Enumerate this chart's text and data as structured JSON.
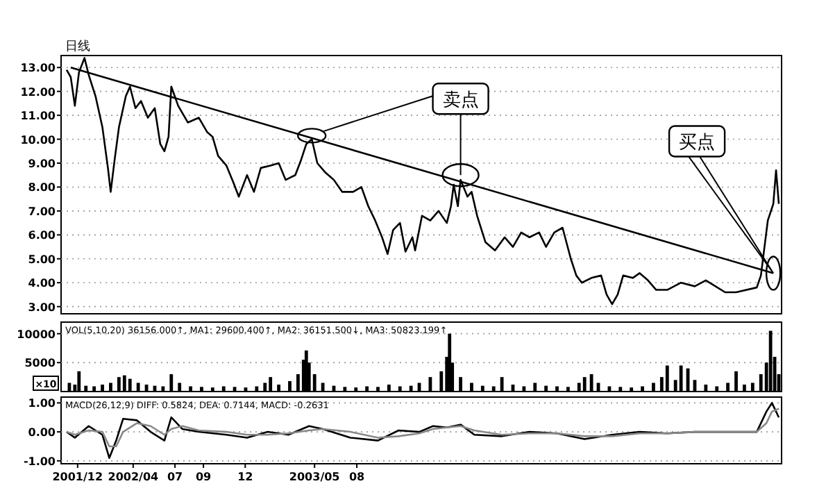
{
  "chart_data": [
    {
      "type": "line",
      "title": "日线",
      "xlim": [
        "2001-10-26",
        "2006-02-11"
      ],
      "ylim": [
        2.7,
        13.5
      ],
      "yticks": [
        {
          "value": 3,
          "label": "3.00"
        },
        {
          "value": 4,
          "label": "4.00"
        },
        {
          "value": 5,
          "label": "5.00"
        },
        {
          "value": 6,
          "label": "6.00"
        },
        {
          "value": 7,
          "label": "7.00"
        },
        {
          "value": 8,
          "label": "8.00"
        },
        {
          "value": 9,
          "label": "9.00"
        },
        {
          "value": 10,
          "label": "10.00"
        },
        {
          "value": 11,
          "label": "11.00"
        },
        {
          "value": 12,
          "label": "12.00"
        },
        {
          "value": 13,
          "label": "13.00"
        }
      ],
      "grid": "y",
      "tick_labels": "y",
      "series": [
        {
          "color": "#000000",
          "x": [
            "2001-11-07",
            "2001-11-16",
            "2001-11-25",
            "2001-12-04",
            "2001-12-16",
            "2001-12-25",
            "2002-01-09",
            "2002-01-24",
            "2002-02-05",
            "2002-02-11",
            "2002-02-20",
            "2002-03-01",
            "2002-03-16",
            "2002-03-25",
            "2002-04-06",
            "2002-04-18",
            "2002-05-03",
            "2002-05-18",
            "2002-05-30",
            "2002-06-08",
            "2002-06-17",
            "2002-06-23",
            "2002-07-08",
            "2002-07-29",
            "2002-08-22",
            "2002-09-09",
            "2002-09-21",
            "2002-10-03",
            "2002-10-21",
            "2002-11-05",
            "2002-11-17",
            "2002-12-05",
            "2002-12-20",
            "2003-01-04",
            "2003-01-25",
            "2003-02-12",
            "2003-02-27",
            "2003-03-20",
            "2003-04-01",
            "2003-04-13",
            "2003-04-25",
            "2003-05-07",
            "2003-05-25",
            "2003-06-12",
            "2003-06-30",
            "2003-07-24",
            "2003-08-11",
            "2003-08-26",
            "2003-09-10",
            "2003-09-25",
            "2003-10-07",
            "2003-10-19",
            "2003-11-03",
            "2003-11-15",
            "2003-11-30",
            "2003-12-06",
            "2003-12-21",
            "2004-01-08",
            "2004-01-26",
            "2004-02-13",
            "2004-02-22",
            "2004-02-28",
            "2004-03-08",
            "2004-03-14",
            "2004-03-29",
            "2004-04-07",
            "2004-04-19",
            "2004-05-07",
            "2004-05-28",
            "2004-06-18",
            "2004-07-06",
            "2004-07-24",
            "2004-08-11",
            "2004-09-01",
            "2004-09-16",
            "2004-10-04",
            "2004-10-22",
            "2004-11-09",
            "2004-11-21",
            "2004-12-03",
            "2004-12-24",
            "2005-01-14",
            "2005-01-26",
            "2005-02-07",
            "2005-02-19",
            "2005-03-03",
            "2005-03-24",
            "2005-04-08",
            "2005-04-26",
            "2005-05-14",
            "2005-06-07",
            "2005-07-07",
            "2005-08-06",
            "2005-08-30",
            "2005-09-20",
            "2005-10-11",
            "2005-11-04",
            "2005-12-19",
            "2005-12-28",
            "2006-01-12",
            "2006-01-24",
            "2006-01-30",
            "2006-02-05"
          ],
          "values": [
            12.9,
            12.6,
            11.4,
            12.8,
            13.4,
            12.7,
            11.8,
            10.5,
            8.8,
            7.8,
            9.2,
            10.5,
            11.8,
            12.2,
            11.3,
            11.6,
            10.9,
            11.3,
            9.8,
            9.5,
            10.1,
            12.2,
            11.4,
            10.7,
            10.9,
            10.3,
            10.1,
            9.3,
            8.9,
            8.2,
            7.6,
            8.5,
            7.8,
            8.8,
            8.9,
            9.0,
            8.3,
            8.5,
            9.1,
            9.8,
            10.0,
            9.0,
            8.6,
            8.3,
            7.8,
            7.8,
            8.0,
            7.2,
            6.6,
            5.9,
            5.2,
            6.2,
            6.5,
            5.3,
            5.9,
            5.35,
            6.8,
            6.6,
            7.0,
            6.5,
            7.2,
            8.1,
            7.2,
            8.3,
            7.6,
            7.8,
            6.8,
            5.7,
            5.35,
            5.9,
            5.5,
            6.1,
            5.9,
            6.1,
            5.5,
            6.1,
            6.3,
            5.0,
            4.3,
            4.0,
            4.2,
            4.3,
            3.5,
            3.1,
            3.5,
            4.3,
            4.2,
            4.4,
            4.1,
            3.7,
            3.7,
            4.0,
            3.85,
            4.1,
            3.85,
            3.6,
            3.6,
            3.8,
            4.3,
            6.6,
            7.3,
            8.7,
            7.3
          ]
        },
        {
          "type": "line",
          "color": "#000000",
          "x": [
            "2001-11-16",
            "2006-01-24"
          ],
          "values": [
            13.0,
            4.4
          ]
        }
      ],
      "annotations": [
        {
          "text": "卖点",
          "x": "2004-03-14",
          "y": 8.5
        },
        "买点"
      ]
    },
    {
      "type": "bar",
      "title": "VOL(5,10,20) 36156.000↑, MA1: 29600.400↑, MA2: 36151.500↓, MA3: 50823.199↑",
      "ylabel": "×10",
      "xlim": [
        "2001-10-26",
        "2006-02-11"
      ],
      "ylim": [
        0,
        12000
      ],
      "yticks": [
        5000,
        10000
      ],
      "grid": "y",
      "tick_labels": "y",
      "color": "#000000",
      "x": [
        "2001-11-13",
        "2001-11-25",
        "2001-12-04",
        "2001-12-19",
        "2002-01-06",
        "2002-01-24",
        "2002-02-11",
        "2002-03-01",
        "2002-03-13",
        "2002-03-25",
        "2002-04-12",
        "2002-04-30",
        "2002-05-18",
        "2002-06-05",
        "2002-06-23",
        "2002-07-11",
        "2002-08-04",
        "2002-08-28",
        "2002-09-21",
        "2002-10-15",
        "2002-11-08",
        "2002-12-02",
        "2002-12-26",
        "2003-01-13",
        "2003-01-25",
        "2003-02-12",
        "2003-03-08",
        "2003-03-26",
        "2003-04-07",
        "2003-04-13",
        "2003-04-19",
        "2003-05-01",
        "2003-05-19",
        "2003-06-12",
        "2003-07-06",
        "2003-07-30",
        "2003-08-23",
        "2003-09-16",
        "2003-10-10",
        "2003-11-03",
        "2003-11-27",
        "2003-12-15",
        "2004-01-08",
        "2004-02-01",
        "2004-02-13",
        "2004-02-19",
        "2004-02-25",
        "2004-03-14",
        "2004-04-07",
        "2004-05-01",
        "2004-05-25",
        "2004-06-12",
        "2004-07-06",
        "2004-07-30",
        "2004-08-23",
        "2004-09-16",
        "2004-10-10",
        "2004-11-03",
        "2004-11-27",
        "2004-12-09",
        "2004-12-24",
        "2005-01-08",
        "2005-02-01",
        "2005-02-25",
        "2005-03-21",
        "2005-04-14",
        "2005-05-08",
        "2005-05-26",
        "2005-06-07",
        "2005-06-25",
        "2005-07-07",
        "2005-07-22",
        "2005-08-06",
        "2005-08-30",
        "2005-09-23",
        "2005-10-17",
        "2005-11-04",
        "2005-11-22",
        "2005-12-10",
        "2005-12-28",
        "2006-01-09",
        "2006-01-18",
        "2006-01-27",
        "2006-02-05"
      ],
      "values": [
        1500,
        1200,
        3500,
        1000,
        900,
        1200,
        1500,
        2500,
        2800,
        2200,
        1500,
        1200,
        1000,
        900,
        3000,
        1500,
        900,
        800,
        700,
        900,
        800,
        700,
        900,
        1500,
        2500,
        1200,
        1800,
        3000,
        5500,
        7100,
        5000,
        3000,
        1500,
        1000,
        800,
        700,
        900,
        800,
        1200,
        900,
        1000,
        1500,
        2500,
        3500,
        6000,
        10000,
        5000,
        2500,
        1500,
        1000,
        900,
        2500,
        1200,
        900,
        1500,
        1000,
        900,
        800,
        1500,
        2500,
        3000,
        1500,
        900,
        800,
        700,
        900,
        1500,
        2500,
        4500,
        2000,
        4500,
        4000,
        2000,
        1200,
        900,
        1500,
        3500,
        1200,
        1500,
        3000,
        5000,
        10500,
        6000,
        3000
      ]
    },
    {
      "type": "line",
      "title": "MACD(26,12,9) DIFF: 0.5824, DEA: 0.7144, MACD: -0.2631",
      "xlim": [
        "2001-10-26",
        "2006-02-11"
      ],
      "ylim": [
        -1.1,
        1.2
      ],
      "yticks": [
        {
          "value": 1,
          "label": "1.00"
        },
        {
          "value": 0,
          "label": "0.00"
        },
        {
          "value": -1,
          "label": "-1.00"
        }
      ],
      "grid": "y",
      "xticks": [
        {
          "value": "2001-12-01",
          "label": "2001/12"
        },
        {
          "value": "2002-04-01",
          "label": "2002/04"
        },
        {
          "value": "2002-07-01",
          "label": "07"
        },
        {
          "value": "2002-09-01",
          "label": "09"
        },
        {
          "value": "2002-12-01",
          "label": "12"
        },
        {
          "value": "2003-05-01",
          "label": "2003/05"
        },
        {
          "value": "2003-08-01",
          "label": "08"
        }
      ],
      "x": [
        "2001-11-07",
        "2001-11-25",
        "2001-12-25",
        "2002-01-24",
        "2002-02-08",
        "2002-02-23",
        "2002-03-10",
        "2002-04-09",
        "2002-05-09",
        "2002-06-08",
        "2002-06-23",
        "2002-07-17",
        "2002-08-22",
        "2002-10-21",
        "2002-12-05",
        "2003-01-19",
        "2003-03-05",
        "2003-04-19",
        "2003-05-19",
        "2003-07-18",
        "2003-09-16",
        "2003-10-31",
        "2003-12-15",
        "2004-01-14",
        "2004-02-13",
        "2004-03-14",
        "2004-04-13",
        "2004-06-12",
        "2004-08-11",
        "2004-10-10",
        "2004-12-09",
        "2005-02-07",
        "2005-04-08",
        "2005-06-07",
        "2005-08-06",
        "2005-10-05",
        "2005-12-19",
        "2006-01-09",
        "2006-01-21",
        "2006-02-05"
      ],
      "series": [
        {
          "color": "#000000",
          "values": [
            0.0,
            -0.2,
            0.2,
            -0.1,
            -0.9,
            -0.3,
            0.45,
            0.4,
            0.0,
            -0.3,
            0.5,
            0.1,
            0.0,
            -0.1,
            -0.2,
            0.0,
            -0.1,
            0.2,
            0.1,
            -0.2,
            -0.3,
            0.05,
            0.0,
            0.2,
            0.15,
            0.25,
            -0.1,
            -0.15,
            0.0,
            -0.05,
            -0.25,
            -0.1,
            0.0,
            -0.05,
            0.0,
            0.0,
            0.0,
            0.7,
            1.0,
            0.5
          ]
        },
        {
          "color": "#888888",
          "values": [
            0.0,
            -0.1,
            0.05,
            0.0,
            -0.5,
            -0.5,
            0.0,
            0.3,
            0.2,
            -0.1,
            0.1,
            0.2,
            0.05,
            0.0,
            -0.1,
            -0.1,
            -0.05,
            0.05,
            0.1,
            0.0,
            -0.2,
            -0.15,
            -0.05,
            0.1,
            0.15,
            0.2,
            0.05,
            -0.1,
            -0.05,
            -0.05,
            -0.15,
            -0.15,
            -0.05,
            -0.05,
            0.0,
            0.0,
            0.0,
            0.3,
            0.7,
            0.8
          ]
        }
      ]
    }
  ]
}
